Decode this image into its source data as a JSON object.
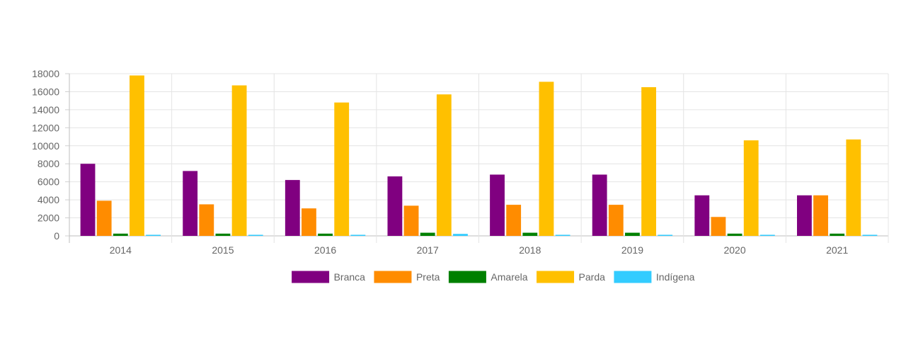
{
  "chart_data": {
    "type": "bar",
    "title": "",
    "xlabel": "",
    "ylabel": "",
    "categories": [
      "2014",
      "2015",
      "2016",
      "2017",
      "2018",
      "2019",
      "2020",
      "2021"
    ],
    "ylim": [
      0,
      18000
    ],
    "yticks": [
      0,
      2000,
      4000,
      6000,
      8000,
      10000,
      12000,
      14000,
      16000,
      18000
    ],
    "grid": true,
    "legend_position": "bottom",
    "series": [
      {
        "name": "Branca",
        "color": "#800080",
        "values": [
          8000,
          7200,
          6200,
          6600,
          6800,
          6800,
          4500,
          4500
        ]
      },
      {
        "name": "Preta",
        "color": "#FF8C00",
        "values": [
          3900,
          3500,
          3050,
          3350,
          3450,
          3450,
          2100,
          4500
        ]
      },
      {
        "name": "Amarela",
        "color": "#008000",
        "values": [
          250,
          250,
          250,
          350,
          350,
          350,
          250,
          250
        ]
      },
      {
        "name": "Parda",
        "color": "#FFC000",
        "values": [
          17800,
          16700,
          14800,
          15700,
          17100,
          16500,
          10600,
          10700
        ]
      },
      {
        "name": "Indígena",
        "color": "#33CCFF",
        "values": [
          120,
          120,
          120,
          220,
          120,
          120,
          120,
          120
        ]
      }
    ]
  }
}
